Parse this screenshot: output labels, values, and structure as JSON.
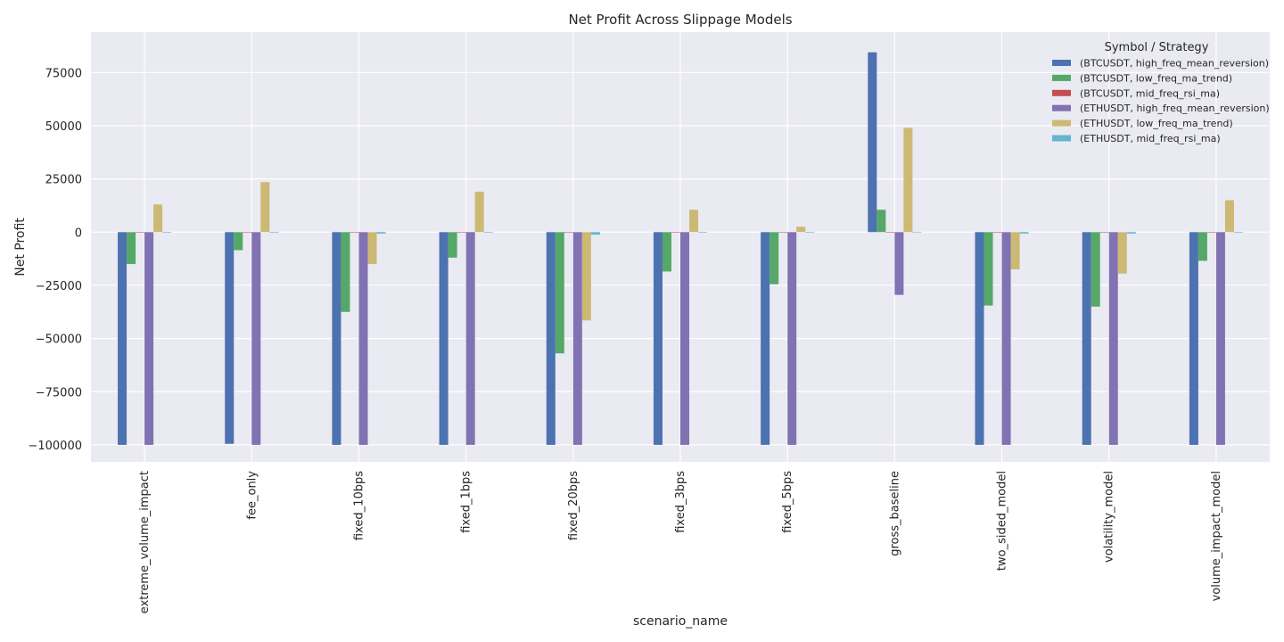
{
  "chart_data": {
    "type": "bar",
    "title": "Net Profit Across Slippage Models",
    "xlabel": "scenario_name",
    "ylabel": "Net Profit",
    "ylim": [
      -108000,
      94000
    ],
    "yticks": [
      75000,
      50000,
      25000,
      0,
      -25000,
      -50000,
      -75000,
      -100000
    ],
    "ytick_labels": [
      "75000",
      "50000",
      "25000",
      "0",
      "−25000",
      "−50000",
      "−75000",
      "−100000"
    ],
    "grid": true,
    "legend_title": "Symbol / Strategy",
    "legend_position": "top-right",
    "categories": [
      "extreme_volume_impact",
      "fee_only",
      "fixed_10bps",
      "fixed_1bps",
      "fixed_20bps",
      "fixed_3bps",
      "fixed_5bps",
      "gross_baseline",
      "two_sided_model",
      "volatility_model",
      "volume_impact_model"
    ],
    "series": [
      {
        "name": "(BTCUSDT, high_freq_mean_reversion)",
        "color": "#4c72b0",
        "values": [
          -100000,
          -99500,
          -100000,
          -100000,
          -100000,
          -100000,
          -100000,
          84500,
          -100000,
          -100000,
          -100000
        ]
      },
      {
        "name": "(BTCUSDT, low_freq_ma_trend)",
        "color": "#55a868",
        "values": [
          -15000,
          -8500,
          -37500,
          -12000,
          -57000,
          -18500,
          -24500,
          10500,
          -34500,
          -35000,
          -13500
        ]
      },
      {
        "name": "(BTCUSDT, mid_freq_rsi_ma)",
        "color": "#c44e52",
        "values": [
          0,
          0,
          0,
          0,
          -200,
          0,
          0,
          0,
          0,
          0,
          0
        ]
      },
      {
        "name": "(ETHUSDT, high_freq_mean_reversion)",
        "color": "#8172b3",
        "values": [
          -100000,
          -100000,
          -100000,
          -100000,
          -100000,
          -100000,
          -100000,
          -29500,
          -100000,
          -100000,
          -100000
        ]
      },
      {
        "name": "(ETHUSDT, low_freq_ma_trend)",
        "color": "#ccb974",
        "values": [
          13000,
          23500,
          -15000,
          19000,
          -41500,
          10500,
          2500,
          49000,
          -17500,
          -19500,
          15000
        ]
      },
      {
        "name": "(ETHUSDT, mid_freq_rsi_ma)",
        "color": "#64b5cd",
        "values": [
          -300,
          -300,
          -700,
          -300,
          -1200,
          -300,
          -300,
          0,
          -700,
          -700,
          -300
        ]
      }
    ]
  },
  "style": {
    "plot_background": "#eaeaf2",
    "grid_color": "#ffffff",
    "text_color": "#262626"
  }
}
